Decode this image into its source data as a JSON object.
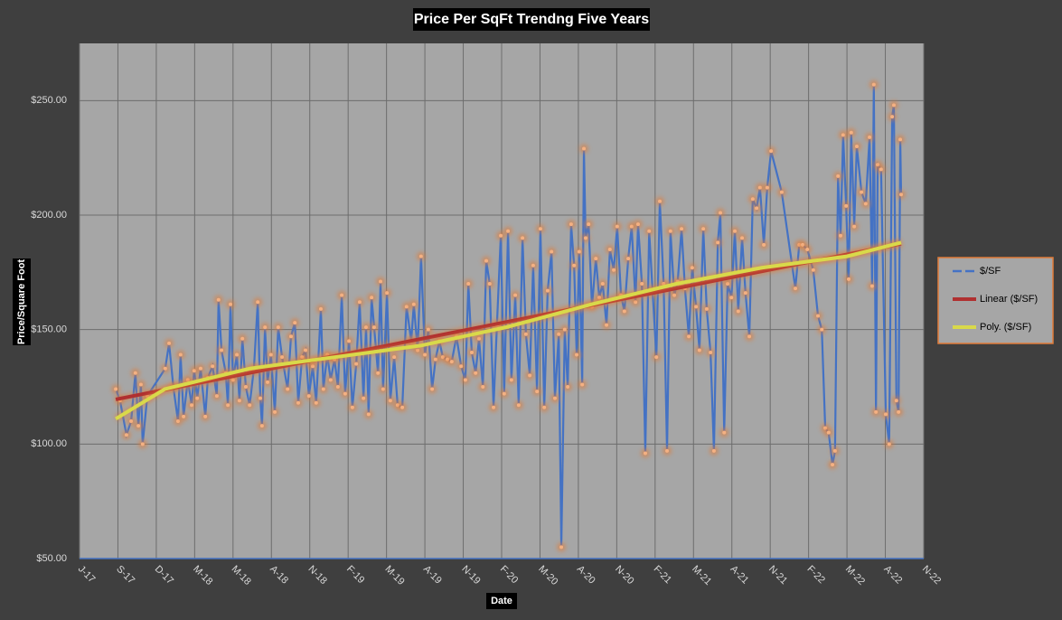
{
  "chart_data": {
    "type": "line",
    "title": "Price Per SqFt Trendng Five Years",
    "x_label": "Date",
    "y_label": "Price/Square Foot",
    "xlim": [
      0,
      1980
    ],
    "xticks": [
      {
        "value": 0,
        "label": "J-17"
      },
      {
        "value": 90,
        "label": "S-17"
      },
      {
        "value": 180,
        "label": "D-17"
      },
      {
        "value": 270,
        "label": "M-18"
      },
      {
        "value": 360,
        "label": "M-18"
      },
      {
        "value": 450,
        "label": "A-18"
      },
      {
        "value": 540,
        "label": "N-18"
      },
      {
        "value": 630,
        "label": "F-19"
      },
      {
        "value": 720,
        "label": "M-19"
      },
      {
        "value": 810,
        "label": "A-19"
      },
      {
        "value": 900,
        "label": "N-19"
      },
      {
        "value": 990,
        "label": "F-20"
      },
      {
        "value": 1080,
        "label": "M-20"
      },
      {
        "value": 1170,
        "label": "A-20"
      },
      {
        "value": 1260,
        "label": "N-20"
      },
      {
        "value": 1350,
        "label": "F-21"
      },
      {
        "value": 1440,
        "label": "M-21"
      },
      {
        "value": 1530,
        "label": "A-21"
      },
      {
        "value": 1620,
        "label": "N-21"
      },
      {
        "value": 1710,
        "label": "F-22"
      },
      {
        "value": 1800,
        "label": "M-22"
      },
      {
        "value": 1890,
        "label": "A-22"
      },
      {
        "value": 1980,
        "label": "N-22"
      }
    ],
    "ylim": [
      50,
      275
    ],
    "yticks": [
      {
        "value": 50,
        "label": "$50.00"
      },
      {
        "value": 100,
        "label": "$100.00"
      },
      {
        "value": 150,
        "label": "$150.00"
      },
      {
        "value": 200,
        "label": "$200.00"
      },
      {
        "value": 250,
        "label": "$250.00"
      }
    ],
    "grid": true,
    "legend": "right",
    "series": [
      {
        "name": "$/SF",
        "color": "#4472c4",
        "marker_color": "#f4b183",
        "x": [
          85,
          95,
          110,
          121,
          131,
          138,
          144,
          148,
          159,
          201,
          210,
          220,
          231,
          237,
          244,
          254,
          263,
          269,
          276,
          284,
          295,
          301,
          312,
          322,
          326,
          333,
          343,
          348,
          354,
          360,
          369,
          375,
          382,
          390,
          399,
          409,
          418,
          424,
          428,
          435,
          441,
          449,
          458,
          466,
          475,
          488,
          496,
          505,
          513,
          522,
          530,
          538,
          547,
          555,
          566,
          572,
          581,
          589,
          598,
          606,
          615,
          623,
          632,
          640,
          649,
          657,
          666,
          672,
          678,
          685,
          691,
          700,
          706,
          712,
          721,
          729,
          738,
          746,
          757,
          767,
          778,
          784,
          793,
          801,
          810,
          818,
          827,
          835,
          844,
          852,
          863,
          873,
          884,
          895,
          905,
          912,
          920,
          929,
          937,
          946,
          954,
          962,
          971,
          979,
          988,
          996,
          1005,
          1013,
          1022,
          1030,
          1039,
          1047,
          1056,
          1064,
          1073,
          1081,
          1090,
          1098,
          1107,
          1115,
          1124,
          1130,
          1138,
          1145,
          1153,
          1160,
          1166,
          1172,
          1179,
          1183,
          1187,
          1194,
          1202,
          1211,
          1219,
          1227,
          1236,
          1244,
          1253,
          1261,
          1270,
          1278,
          1287,
          1295,
          1304,
          1310,
          1319,
          1327,
          1336,
          1344,
          1353,
          1361,
          1370,
          1378,
          1386,
          1395,
          1403,
          1412,
          1420,
          1429,
          1437,
          1446,
          1454,
          1463,
          1471,
          1480,
          1488,
          1497,
          1503,
          1512,
          1520,
          1529,
          1537,
          1545,
          1554,
          1562,
          1571,
          1579,
          1588,
          1596,
          1605,
          1613,
          1622,
          1647,
          1679,
          1688,
          1696,
          1707,
          1721,
          1732,
          1741,
          1749,
          1757,
          1766,
          1772,
          1779,
          1785,
          1791,
          1798,
          1804,
          1810,
          1817,
          1823,
          1834,
          1844,
          1853,
          1859,
          1863,
          1868,
          1872,
          1880,
          1891,
          1899,
          1906,
          1910,
          1916,
          1921,
          1925,
          1927
        ],
        "values": [
          124,
          119,
          104,
          110,
          131,
          108,
          126,
          100,
          121,
          133,
          144,
          125,
          110,
          139,
          112,
          128,
          117,
          132,
          120,
          133,
          112,
          129,
          134,
          121,
          163,
          141,
          131,
          117,
          161,
          128,
          139,
          119,
          146,
          125,
          117,
          133,
          162,
          120,
          108,
          151,
          127,
          139,
          114,
          151,
          138,
          124,
          147,
          153,
          118,
          138,
          141,
          121,
          134,
          118,
          159,
          124,
          139,
          128,
          137,
          125,
          165,
          122,
          145,
          116,
          135,
          162,
          120,
          151,
          113,
          164,
          151,
          131,
          171,
          124,
          166,
          119,
          138,
          117,
          116,
          160,
          145,
          161,
          141,
          182,
          139,
          150,
          124,
          137,
          145,
          138,
          137,
          136,
          147,
          134,
          128,
          170,
          140,
          131,
          146,
          125,
          180,
          170,
          116,
          152,
          191,
          122,
          193,
          128,
          165,
          117,
          190,
          148,
          130,
          178,
          123,
          194,
          116,
          167,
          184,
          120,
          148,
          55,
          150,
          125,
          196,
          178,
          139,
          184,
          126,
          229,
          190,
          196,
          160,
          181,
          164,
          170,
          152,
          185,
          176,
          195,
          165,
          158,
          181,
          195,
          162,
          196,
          170,
          96,
          193,
          167,
          138,
          206,
          170,
          97,
          193,
          165,
          171,
          194,
          168,
          147,
          177,
          160,
          141,
          194,
          159,
          140,
          97,
          188,
          201,
          105,
          170,
          164,
          193,
          158,
          190,
          166,
          147,
          207,
          203,
          212,
          187,
          212,
          228,
          210,
          168,
          187,
          187,
          185,
          176,
          156,
          150,
          107,
          105,
          91,
          97,
          217,
          191,
          235,
          204,
          172,
          236,
          195,
          230,
          210,
          205,
          234,
          169,
          257,
          114,
          222,
          220,
          113,
          100,
          243,
          248,
          119,
          114,
          233,
          209
        ]
      },
      {
        "name": "Linear ($/SF)",
        "color": "#b03030",
        "x": [
          85,
          1927
        ],
        "values": [
          119.5,
          187.5
        ]
      },
      {
        "name": "Poly. ($/SF)",
        "color": "#d9d94a",
        "x": [
          85,
          200,
          400,
          600,
          800,
          1000,
          1200,
          1400,
          1600,
          1800,
          1927
        ],
        "values": [
          111,
          124,
          133,
          138,
          143,
          151,
          161,
          170,
          177,
          182,
          188
        ]
      }
    ]
  }
}
